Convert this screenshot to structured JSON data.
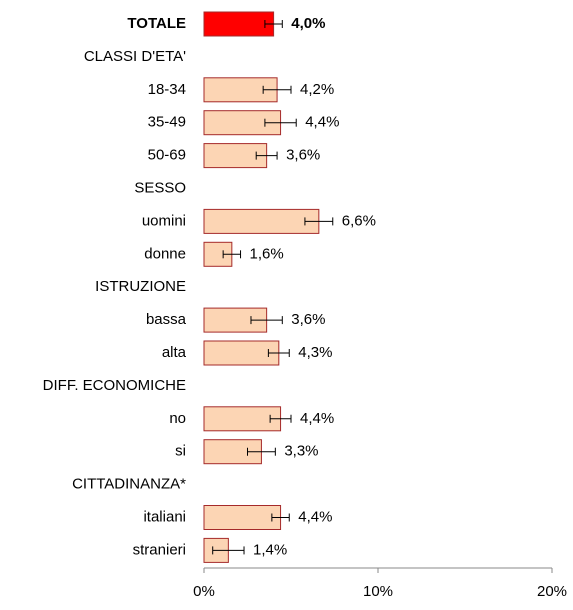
{
  "chart_data": {
    "type": "hbar",
    "categories": [
      "TOTALE",
      "CLASSI D'ETA'",
      "18-34",
      "35-49",
      "50-69",
      "SESSO",
      "uomini",
      "donne",
      "ISTRUZIONE",
      "bassa",
      "alta",
      "DIFF. ECONOMICHE",
      "no",
      "si",
      "CITTADINANZA*",
      "italiani",
      "stranieri"
    ],
    "values": [
      4.0,
      null,
      4.2,
      4.4,
      3.6,
      null,
      6.6,
      1.6,
      null,
      3.6,
      4.3,
      null,
      4.4,
      3.3,
      null,
      4.4,
      1.4
    ],
    "value_labels": [
      "4,0%",
      null,
      "4,2%",
      "4,4%",
      "3,6%",
      null,
      "6,6%",
      "1,6%",
      null,
      "3,6%",
      "4,3%",
      null,
      "4,4%",
      "3,3%",
      null,
      "4,4%",
      "1,4%"
    ],
    "errors": [
      0.5,
      null,
      0.8,
      0.9,
      0.6,
      null,
      0.8,
      0.5,
      null,
      0.9,
      0.6,
      null,
      0.6,
      0.8,
      null,
      0.5,
      0.9
    ],
    "color": "#fcd5b4",
    "colors": [
      "#ff0000",
      null,
      "#fcd5b4",
      "#fcd5b4",
      "#fcd5b4",
      null,
      "#fcd5b4",
      "#fcd5b4",
      null,
      "#fcd5b4",
      "#fcd5b4",
      null,
      "#fcd5b4",
      "#fcd5b4",
      null,
      "#fcd5b4",
      "#fcd5b4"
    ],
    "border_color": "#a52a2a",
    "xlim": [
      0,
      20
    ],
    "xticks": [
      {
        "value": 0,
        "label": "0%"
      },
      {
        "value": 10,
        "label": "10%"
      },
      {
        "value": 20,
        "label": "20%"
      }
    ]
  }
}
